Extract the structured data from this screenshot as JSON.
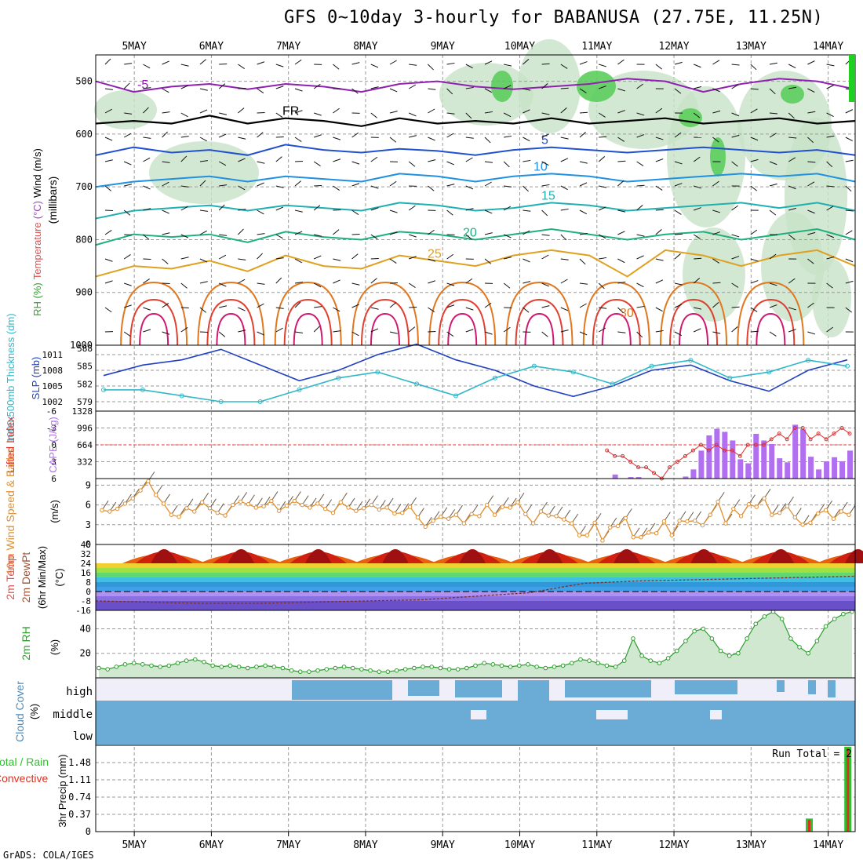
{
  "title": "GFS 0~10day 3-hourly for BABANUSA (27.75E, 11.25N)",
  "footer": "GrADS: COLA/IGES",
  "chart_data": [
    {
      "name": "upper-air",
      "type": "contour",
      "x_labels": [
        "5MAY",
        "6MAY",
        "7MAY",
        "8MAY",
        "9MAY",
        "10MAY",
        "11MAY",
        "12MAY",
        "13MAY",
        "14MAY"
      ],
      "ylabel_parts": [
        {
          "text": "RH (%)",
          "color": "#2e9e2e"
        },
        {
          "text": "Temperature",
          "color": "#e05050"
        },
        {
          "text": "(°C)",
          "color": "#a040c0"
        },
        {
          "text": "Wind (m/s)",
          "color": "#000000"
        }
      ],
      "ylabel_unit": "(millibars)",
      "ylim": [
        1000,
        450
      ],
      "yticks": [
        500,
        600,
        700,
        800,
        900,
        1000
      ],
      "isotherms": [
        {
          "label": "-5",
          "color": "#9020b0",
          "p": [
            500,
            520,
            510,
            505,
            515,
            505,
            510,
            520,
            505,
            500,
            510,
            515,
            510,
            505,
            495,
            500,
            520,
            505,
            495,
            500,
            515
          ]
        },
        {
          "label": "FR",
          "color": "#000000",
          "p": [
            580,
            575,
            580,
            565,
            580,
            570,
            575,
            585,
            570,
            580,
            575,
            580,
            570,
            580,
            575,
            570,
            580,
            575,
            570,
            580,
            575
          ]
        },
        {
          "label": "5",
          "color": "#2050d0",
          "p": [
            640,
            625,
            635,
            630,
            640,
            620,
            630,
            635,
            628,
            632,
            640,
            630,
            625,
            630,
            635,
            630,
            625,
            630,
            635,
            630,
            640
          ]
        },
        {
          "label": "10",
          "color": "#2090e0",
          "p": [
            700,
            690,
            685,
            680,
            690,
            680,
            685,
            690,
            675,
            680,
            690,
            680,
            675,
            680,
            690,
            685,
            680,
            675,
            680,
            675,
            690
          ]
        },
        {
          "label": "15",
          "color": "#20b0b0",
          "p": [
            760,
            745,
            740,
            735,
            745,
            735,
            740,
            745,
            730,
            735,
            745,
            740,
            730,
            735,
            745,
            740,
            735,
            730,
            740,
            730,
            745
          ]
        },
        {
          "label": "20",
          "color": "#20b080",
          "p": [
            810,
            790,
            795,
            790,
            805,
            785,
            795,
            800,
            785,
            790,
            800,
            790,
            780,
            790,
            800,
            790,
            785,
            800,
            790,
            780,
            800
          ]
        },
        {
          "label": "25",
          "color": "#e0a020",
          "p": [
            870,
            850,
            855,
            840,
            860,
            830,
            850,
            855,
            830,
            840,
            850,
            830,
            820,
            830,
            870,
            820,
            830,
            850,
            830,
            820,
            850
          ]
        }
      ],
      "temp_labels": [
        "-5",
        "FR",
        "5",
        "10",
        "15",
        "20",
        "25",
        "30"
      ]
    },
    {
      "name": "thickness-slp",
      "type": "line",
      "left_label": "1000-500mb Thickness (dm)",
      "right_label": "SLP (mb)",
      "left_ticks": [
        579,
        582,
        585,
        588
      ],
      "right_ticks": [
        1002,
        1005,
        1008,
        1011
      ],
      "series": [
        {
          "name": "SLP (mb)",
          "color": "#2040c0",
          "values": [
            1007,
            1009,
            1010,
            1012,
            1009,
            1006,
            1008,
            1011,
            1013,
            1010,
            1008,
            1005,
            1003,
            1005,
            1008,
            1009,
            1006,
            1004,
            1008,
            1010
          ]
        },
        {
          "name": "1000-500mb Thickness (dm)",
          "color": "#30b8c8",
          "values": [
            581,
            581,
            580,
            579,
            579,
            581,
            583,
            584,
            582,
            580,
            583,
            585,
            584,
            582,
            585,
            586,
            583,
            584,
            586,
            585
          ]
        }
      ]
    },
    {
      "name": "cape-li",
      "type": "bar",
      "left_label": "Lifted Index",
      "right_label": "CAPE (J/kg)",
      "left_ticks": [
        "6",
        "3",
        "0",
        "-3",
        "-6"
      ],
      "right_ticks": [
        332,
        664,
        996,
        1328
      ],
      "cape_values": [
        0,
        0,
        0,
        0,
        0,
        0,
        0,
        0,
        0,
        0,
        0,
        0,
        0,
        0,
        0,
        0,
        0,
        0,
        0,
        0,
        0,
        0,
        0,
        0,
        0,
        0,
        0,
        0,
        0,
        0,
        0,
        0,
        0,
        0,
        0,
        0,
        0,
        0,
        0,
        0,
        0,
        0,
        0,
        0,
        0,
        0,
        0,
        0,
        0,
        0,
        0,
        0,
        0,
        0,
        0,
        0,
        0,
        0,
        0,
        0,
        0,
        0,
        0,
        0,
        0,
        0,
        80,
        0,
        30,
        30,
        0,
        0,
        0,
        0,
        0,
        40,
        180,
        550,
        850,
        980,
        920,
        750,
        380,
        300,
        880,
        750,
        680,
        400,
        320,
        1060,
        970,
        430,
        180,
        340,
        420,
        340,
        550
      ],
      "li_values": [
        null,
        null,
        null,
        null,
        null,
        null,
        null,
        null,
        null,
        null,
        null,
        null,
        null,
        null,
        null,
        null,
        null,
        null,
        null,
        null,
        null,
        null,
        null,
        null,
        null,
        null,
        null,
        null,
        null,
        null,
        null,
        null,
        null,
        null,
        null,
        null,
        null,
        null,
        null,
        null,
        null,
        null,
        null,
        null,
        null,
        null,
        null,
        null,
        null,
        null,
        null,
        null,
        null,
        null,
        null,
        null,
        null,
        null,
        null,
        null,
        null,
        null,
        null,
        null,
        null,
        1,
        2,
        2,
        3,
        4,
        4,
        5,
        6,
        4,
        3,
        2,
        1,
        0,
        1,
        0,
        1,
        1,
        2,
        0,
        0,
        0,
        -1,
        -2,
        -1,
        -3,
        -3,
        -1,
        -2,
        -1,
        -2,
        -3,
        -2
      ],
      "li_color": "#e03030",
      "cape_color": "#b070f0"
    },
    {
      "name": "wind10m",
      "type": "line",
      "left_label": "10m Wind Speed & Barbs",
      "unit_label": "(m/s)",
      "ylim": [
        0,
        10
      ],
      "yticks": [
        0,
        3,
        6,
        9
      ],
      "color": "#e09030",
      "values": [
        5.2,
        5.0,
        5.4,
        6.2,
        7.0,
        8.2,
        9.6,
        7.5,
        6.2,
        4.5,
        4.2,
        5.5,
        5.0,
        6.4,
        5.5,
        4.8,
        4.4,
        6.0,
        6.5,
        6.1,
        5.6,
        5.8,
        6.6,
        5.1,
        5.9,
        6.6,
        6.0,
        5.6,
        6.2,
        5.4,
        4.8,
        6.4,
        5.6,
        5.1,
        5.5,
        6.0,
        5.3,
        5.6,
        4.7,
        4.8,
        5.7,
        4.1,
        2.7,
        3.6,
        4.2,
        3.9,
        4.5,
        3.2,
        4.6,
        4.3,
        6.0,
        4.5,
        5.7,
        5.6,
        6.4,
        4.6,
        3.2,
        5.0,
        4.4,
        4.3,
        3.8,
        3.2,
        1.4,
        1.4,
        3.3,
        0.6,
        2.6,
        2.8,
        4.0,
        1.1,
        1.1,
        1.8,
        1.7,
        3.5,
        1.4,
        3.6,
        3.5,
        3.6,
        2.9,
        4.5,
        6.5,
        3.2,
        5.4,
        4.3,
        6.1,
        5.7,
        7.0,
        4.5,
        4.8,
        5.8,
        4.1,
        3.0,
        3.3,
        4.7,
        5.2,
        3.9,
        5.0,
        4.5
      ]
    },
    {
      "name": "temp2m",
      "type": "area",
      "left_label": "2m Temp",
      "left_label2": "2m DewPt",
      "left_label3": "(6hr Min/Max)",
      "unit_label": "(°C)",
      "ylim": [
        -16,
        40
      ],
      "yticks": [
        -16,
        -8,
        0,
        8,
        16,
        24,
        32,
        40
      ],
      "temp_max": [
        38,
        38,
        38,
        38,
        38,
        38,
        38,
        38,
        38,
        38
      ],
      "temp_min": [
        25,
        25,
        25,
        25,
        25,
        25,
        25,
        25,
        25,
        25
      ],
      "dewpt": [
        -8,
        -9,
        -10,
        -10,
        -9,
        -8,
        -7,
        -4,
        -1,
        7,
        9,
        10,
        11,
        12,
        13
      ]
    },
    {
      "name": "rh2m",
      "type": "area",
      "left_label": "2m RH",
      "unit_label": "(%)",
      "ylim": [
        0,
        55
      ],
      "yticks": [
        20,
        40
      ],
      "color": "#2e9e2e",
      "values": [
        8,
        7,
        9,
        11,
        12,
        11,
        10,
        9,
        10,
        12,
        14,
        15,
        13,
        10,
        9,
        10,
        9,
        8,
        9,
        10,
        9,
        8,
        6,
        5,
        5,
        6,
        7,
        8,
        9,
        8,
        7,
        6,
        5,
        5,
        6,
        7,
        8,
        9,
        9,
        8,
        7,
        7,
        8,
        10,
        12,
        11,
        10,
        9,
        10,
        11,
        9,
        8,
        9,
        10,
        12,
        15,
        14,
        12,
        10,
        9,
        14,
        32,
        18,
        14,
        12,
        16,
        22,
        30,
        38,
        40,
        32,
        22,
        18,
        20,
        32,
        44,
        50,
        54,
        48,
        32,
        25,
        20,
        30,
        42,
        48,
        52,
        54
      ]
    },
    {
      "name": "cloud-cover",
      "type": "table",
      "left_label": "Cloud Cover",
      "unit_label": "(%)",
      "layers": [
        "high",
        "middle",
        "low"
      ],
      "color": "#6aacd6"
    },
    {
      "name": "precip",
      "type": "bar",
      "left_label": "Total / Rain",
      "left_label2": "Convective",
      "unit_label": "3hr Precip (mm)",
      "ylim": [
        0,
        1.85
      ],
      "yticks": [
        0,
        0.37,
        0.74,
        1.11,
        1.48
      ],
      "run_total": "Run Total = 2",
      "bars": [
        {
          "day": 13.75,
          "total": 0.28,
          "conv": 0.25
        },
        {
          "day": 14.25,
          "total": 1.82,
          "conv": 1.78
        }
      ],
      "total_color": "#30c030",
      "conv_color": "#e03020"
    }
  ]
}
